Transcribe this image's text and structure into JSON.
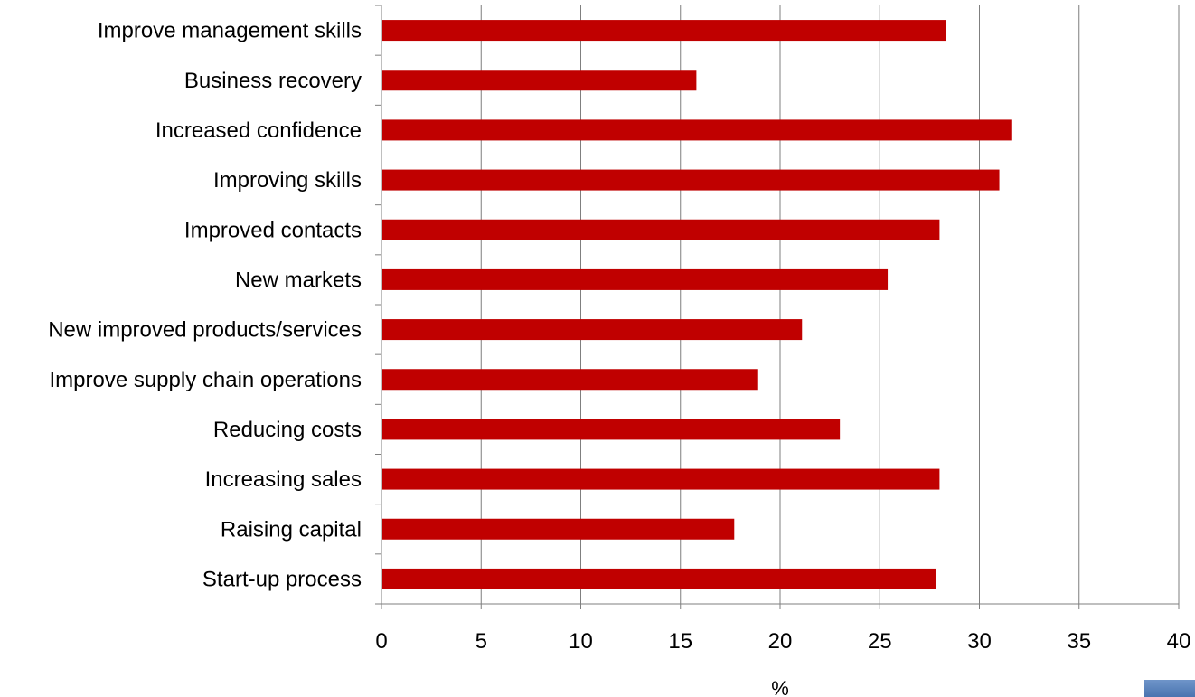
{
  "chart_data": {
    "type": "bar",
    "orientation": "horizontal",
    "title": "",
    "xlabel": "%",
    "ylabel": "",
    "xlim": [
      0,
      40
    ],
    "x_ticks": [
      0,
      5,
      10,
      15,
      20,
      25,
      30,
      35,
      40
    ],
    "grid": "vertical",
    "categories": [
      "Improve management skills",
      "Business recovery",
      "Increased confidence",
      "Improving skills",
      "Improved contacts",
      "New markets",
      "New improved products/services",
      "Improve supply chain operations",
      "Reducing costs",
      "Increasing sales",
      "Raising capital",
      "Start-up process"
    ],
    "values": [
      28.3,
      15.8,
      31.6,
      31.0,
      28.0,
      25.4,
      21.1,
      18.9,
      23.0,
      28.0,
      17.7,
      27.8
    ],
    "bar_color": "#c00000",
    "grid_color": "#7f7f7f"
  }
}
